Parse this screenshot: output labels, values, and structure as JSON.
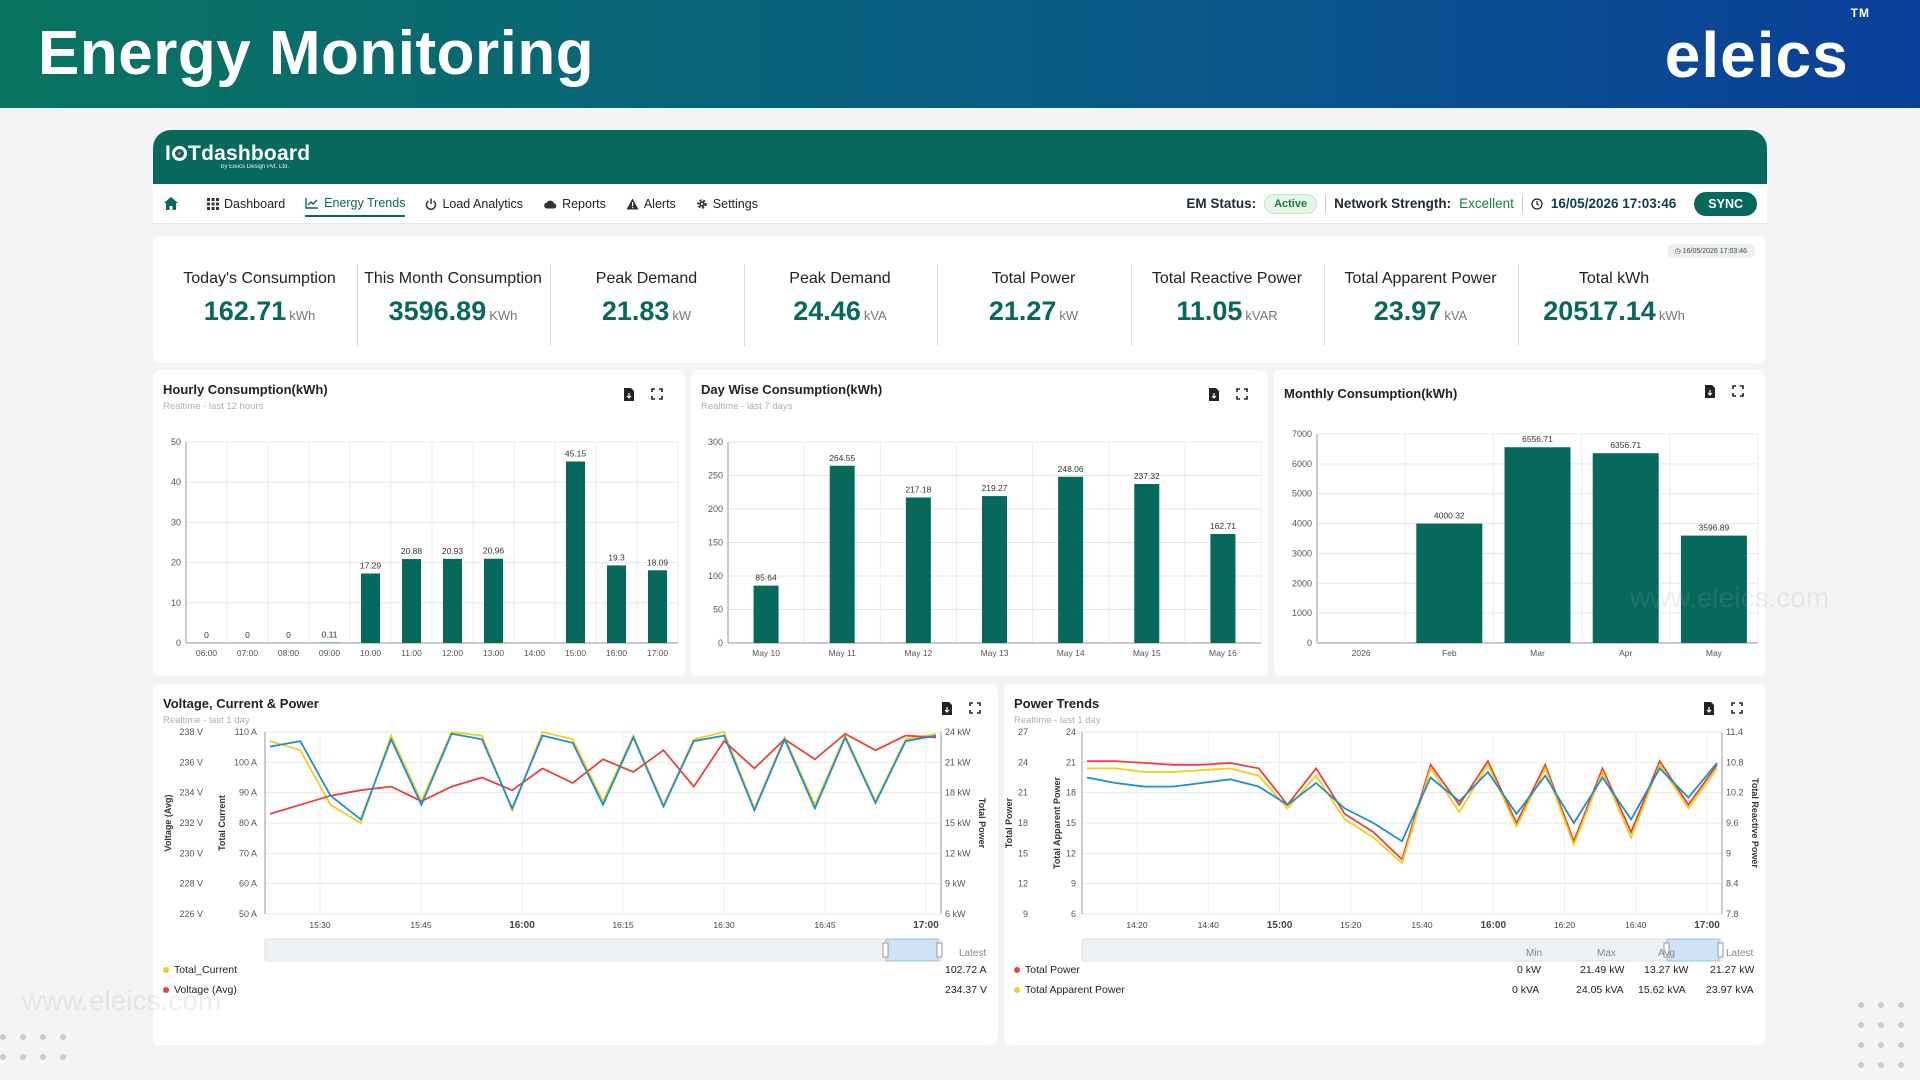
{
  "banner": {
    "title": "Energy Monitoring",
    "brand": "eleics",
    "brand_tm": "TM"
  },
  "app": {
    "logo": {
      "prefix": "I",
      "suffix": "Tdashboard",
      "sub": "by Eleics Design Pvt. Ltd."
    },
    "nav": [
      {
        "label": "Dashboard",
        "icon": "grid-icon"
      },
      {
        "label": "Energy Trends",
        "icon": "trend-icon"
      },
      {
        "label": "Load Analytics",
        "icon": "power-icon"
      },
      {
        "label": "Reports",
        "icon": "cloud-icon"
      },
      {
        "label": "Alerts",
        "icon": "warning-icon"
      },
      {
        "label": "Settings",
        "icon": "gear-icon"
      }
    ],
    "status": {
      "em_label": "EM Status:",
      "em_value": "Active",
      "net_label": "Network Strength:",
      "net_value": "Excellent",
      "datetime": "16/05/2026 17:03:46",
      "sync": "SYNC"
    }
  },
  "kpis": {
    "timestamp": "16/05/2026 17:03:46",
    "items": [
      {
        "label": "Today's Consumption",
        "value": "162.71",
        "unit": "kWh"
      },
      {
        "label": "This Month Consumption",
        "value": "3596.89",
        "unit": "KWh"
      },
      {
        "label": "Peak Demand",
        "value": "21.83",
        "unit": "kW"
      },
      {
        "label": "Peak Demand",
        "value": "24.46",
        "unit": "kVA"
      },
      {
        "label": "Total Power",
        "value": "21.27",
        "unit": "kW"
      },
      {
        "label": "Total Reactive Power",
        "value": "11.05",
        "unit": "kVAR"
      },
      {
        "label": "Total Apparent Power",
        "value": "23.97",
        "unit": "kVA"
      },
      {
        "label": "Total kWh",
        "value": "20517.14",
        "unit": "kWh"
      }
    ]
  },
  "cards": {
    "hourly": {
      "title": "Hourly Consumption(kWh)",
      "subtitle": "Realtime - last 12 hours"
    },
    "daywise": {
      "title": "Day Wise Consumption(kWh)",
      "subtitle": "Realtime - last 7 days"
    },
    "monthly": {
      "title": "Monthly Consumption(kWh)"
    },
    "vcp": {
      "title": "Voltage, Current & Power",
      "subtitle": "Realtime - last 1 day",
      "legend_header": "Latest",
      "legend": [
        {
          "name": "Total_Current",
          "latest": "102.72 A"
        },
        {
          "name": "Voltage (Avg)",
          "latest": "234.37 V"
        }
      ]
    },
    "power": {
      "title": "Power Trends",
      "subtitle": "Realtime - last 1 day",
      "legend_headers": [
        "Min",
        "Max",
        "Avg",
        "Latest"
      ],
      "legend": [
        {
          "name": "Total Power",
          "min": "0 kW",
          "max": "21.49 kW",
          "avg": "13.27 kW",
          "latest": "21.27 kW"
        },
        {
          "name": "Total Apparent Power",
          "min": "0 kVA",
          "max": "24.05 kVA",
          "avg": "15.62 kVA",
          "latest": "23.97 kVA"
        }
      ]
    }
  },
  "watermark": "www.eleics.com",
  "colors": {
    "primary": "#07695b",
    "bar": "#07695b",
    "red": "#e5453a",
    "yellow": "#f2cf1d",
    "blue": "#1f8fd0"
  },
  "chart_data": [
    {
      "type": "bar",
      "title": "Hourly Consumption(kWh)",
      "categories": [
        "06:00",
        "07:00",
        "08:00",
        "09:00",
        "10:00",
        "11:00",
        "12:00",
        "13:00",
        "14:00",
        "15:00",
        "16:00",
        "17:00"
      ],
      "values": [
        0,
        0,
        0,
        0.11,
        17.29,
        20.88,
        20.93,
        20.96,
        null,
        45.15,
        19.3,
        18.09
      ],
      "ylim": [
        0,
        50
      ],
      "yticks": [
        0,
        10,
        20,
        30,
        40,
        50
      ]
    },
    {
      "type": "bar",
      "title": "Day Wise Consumption(kWh)",
      "categories": [
        "May 10",
        "May 11",
        "May 12",
        "May 13",
        "May 14",
        "May 15",
        "May 16"
      ],
      "values": [
        85.64,
        264.55,
        217.18,
        219.27,
        248.06,
        237.32,
        162.71
      ],
      "ylim": [
        0,
        300
      ],
      "yticks": [
        0,
        50,
        100,
        150,
        200,
        250,
        300
      ]
    },
    {
      "type": "bar",
      "title": "Monthly Consumption(kWh)",
      "categories": [
        "2026",
        "Feb",
        "Mar",
        "Apr",
        "May"
      ],
      "values": [
        null,
        4000.32,
        6556.71,
        6356.71,
        3596.89
      ],
      "ylim": [
        0,
        7000
      ],
      "yticks": [
        0,
        1000,
        2000,
        3000,
        4000,
        5000,
        6000,
        7000
      ]
    },
    {
      "type": "line",
      "title": "Voltage, Current & Power",
      "x_ticks": [
        "15:30",
        "15:45",
        "16:00",
        "16:15",
        "16:30",
        "16:45",
        "17:00"
      ],
      "axes": {
        "voltage": {
          "label": "Voltage (Avg)",
          "ticks": [
            "238 V",
            "236 V",
            "234 V",
            "232 V",
            "230 V",
            "228 V",
            "226 V"
          ]
        },
        "current": {
          "label": "Total Current",
          "ticks": [
            "110 A",
            "100 A",
            "90 A",
            "80 A",
            "70 A",
            "60 A",
            "50 A"
          ]
        },
        "power": {
          "label": "Total Power",
          "ticks": [
            "24 kW",
            "21 kW",
            "18 kW",
            "15 kW",
            "12 kW",
            "9 kW",
            "6 kW"
          ]
        }
      },
      "series": [
        {
          "name": "Total_Current",
          "color": "#f2cf1d",
          "values": [
            95,
            90,
            60,
            50,
            98,
            62,
            100,
            98,
            57,
            100,
            96,
            62,
            98,
            60,
            96,
            100,
            58,
            97,
            60,
            98,
            62,
            96,
            99
          ]
        },
        {
          "name": "Voltage (Avg)",
          "color": "#e5453a",
          "values": [
            55,
            60,
            65,
            68,
            70,
            62,
            70,
            75,
            68,
            80,
            72,
            85,
            78,
            90,
            70,
            95,
            80,
            96,
            85,
            99,
            90,
            98,
            97
          ]
        },
        {
          "name": "Total Power",
          "color": "#1f8fd0",
          "values": [
            92,
            95,
            65,
            52,
            96,
            60,
            99,
            96,
            58,
            98,
            94,
            60,
            97,
            59,
            95,
            98,
            57,
            96,
            58,
            97,
            61,
            95,
            98
          ]
        }
      ]
    },
    {
      "type": "line",
      "title": "Power Trends",
      "x_ticks": [
        "14:20",
        "14:40",
        "15:00",
        "15:20",
        "15:40",
        "16:00",
        "16:20",
        "16:40",
        "17:00"
      ],
      "axes": {
        "power": {
          "label": "Total Power",
          "ticks": [
            "27",
            "24",
            "21",
            "18",
            "15",
            "12",
            "9"
          ]
        },
        "apparent": {
          "label": "Total Apparent Power",
          "ticks": [
            "24",
            "21",
            "18",
            "15",
            "12",
            "9",
            "6"
          ]
        },
        "reactive": {
          "label": "Total Reactive Power",
          "ticks": [
            "11.4",
            "10.8",
            "10.2",
            "9.6",
            "9",
            "8.4",
            "7.8"
          ]
        }
      },
      "series": [
        {
          "name": "Total Power",
          "color": "#e5453a",
          "values": [
            84,
            84,
            83,
            82,
            82,
            83,
            80,
            60,
            80,
            55,
            45,
            30,
            82,
            60,
            84,
            50,
            82,
            40,
            80,
            45,
            84,
            60,
            82
          ]
        },
        {
          "name": "Total Apparent Power",
          "color": "#f2cf1d",
          "values": [
            80,
            80,
            78,
            78,
            79,
            80,
            76,
            58,
            76,
            52,
            42,
            28,
            80,
            56,
            82,
            48,
            80,
            38,
            78,
            42,
            82,
            58,
            80
          ]
        },
        {
          "name": "Total Reactive Power",
          "color": "#1f8fd0",
          "values": [
            75,
            72,
            70,
            70,
            72,
            74,
            70,
            60,
            72,
            58,
            50,
            40,
            75,
            62,
            78,
            55,
            76,
            50,
            75,
            52,
            80,
            64,
            83
          ]
        }
      ]
    }
  ]
}
